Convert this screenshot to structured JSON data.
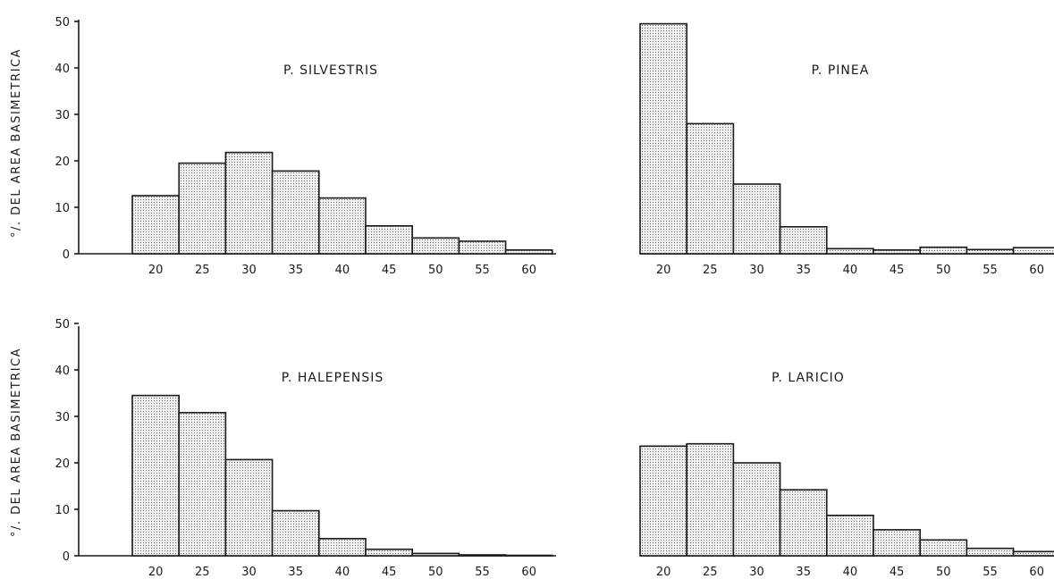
{
  "chart_data": [
    {
      "type": "bar",
      "title": "P. SILVESTRIS",
      "ylabel": "°/. DEL AREA BASIMETRICA",
      "xlabel": "",
      "categories": [
        "20",
        "25",
        "30",
        "35",
        "40",
        "45",
        "50",
        "55",
        "60"
      ],
      "values": [
        12.5,
        19.5,
        21.8,
        17.8,
        12,
        6,
        3.4,
        2.7,
        0.8
      ],
      "ylim": [
        0,
        50
      ],
      "yticks": [
        "0",
        "10",
        "20",
        "30",
        "40",
        "50"
      ]
    },
    {
      "type": "bar",
      "title": "P. PINEA",
      "ylabel": "",
      "xlabel": "",
      "categories": [
        "20",
        "25",
        "30",
        "35",
        "40",
        "45",
        "50",
        "55",
        "60"
      ],
      "values": [
        49.5,
        28,
        15,
        5.8,
        1.1,
        0.8,
        1.4,
        0.9,
        1.3
      ],
      "ylim": [
        0,
        50
      ],
      "yticks": []
    },
    {
      "type": "bar",
      "title": "P. HALEPENSIS",
      "ylabel": "°/. DEL AREA BASIMETRICA",
      "xlabel": "",
      "categories": [
        "20",
        "25",
        "30",
        "35",
        "40",
        "45",
        "50",
        "55",
        "60"
      ],
      "values": [
        34.5,
        30.8,
        20.7,
        9.7,
        3.7,
        1.4,
        0.5,
        0.2,
        0.1
      ],
      "ylim": [
        0,
        50
      ],
      "yticks": [
        "0",
        "10",
        "20",
        "30",
        "40",
        "50"
      ]
    },
    {
      "type": "bar",
      "title": "P. LARICIO",
      "ylabel": "",
      "xlabel": "",
      "categories": [
        "20",
        "25",
        "30",
        "35",
        "40",
        "45",
        "50",
        "55",
        "60"
      ],
      "values": [
        23.6,
        24.1,
        20,
        14.2,
        8.7,
        5.6,
        3.4,
        1.6,
        0.9
      ],
      "ylim": [
        0,
        50
      ],
      "yticks": []
    }
  ]
}
